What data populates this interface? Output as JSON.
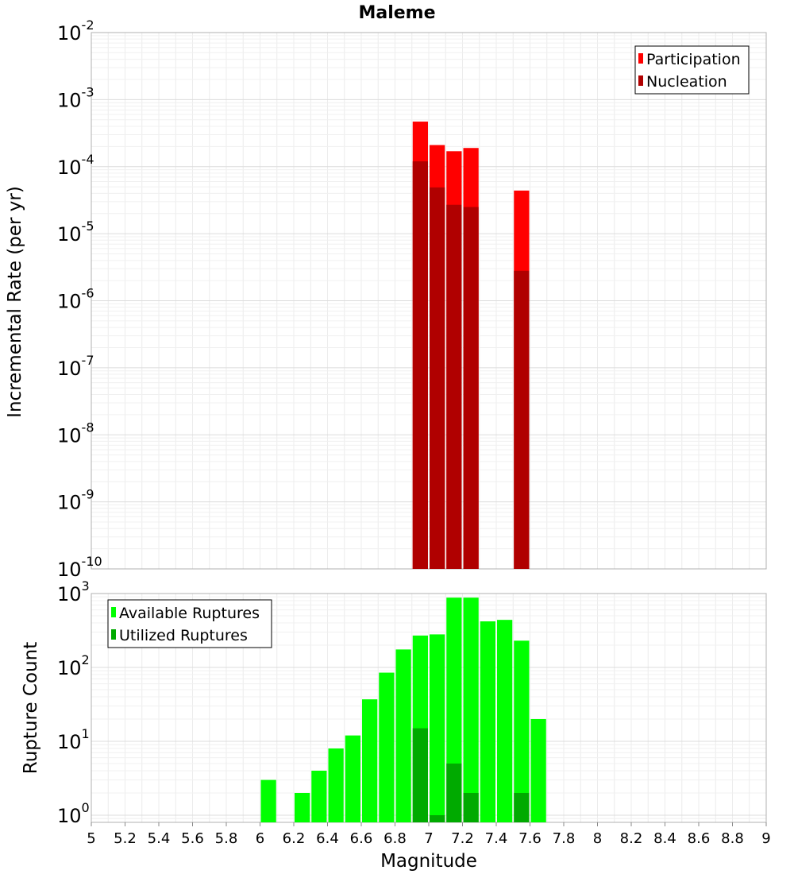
{
  "title": "Maleme",
  "chart_data": [
    {
      "type": "bar",
      "panel": "top",
      "y_scale": "log",
      "ylabel": "Incremental Rate (per yr)",
      "ylim": [
        1e-10,
        0.01
      ],
      "y_ticks": [
        {
          "base": "10",
          "exp": "-2"
        },
        {
          "base": "10",
          "exp": "-3"
        },
        {
          "base": "10",
          "exp": "-4"
        },
        {
          "base": "10",
          "exp": "-5"
        },
        {
          "base": "10",
          "exp": "-6"
        },
        {
          "base": "10",
          "exp": "-7"
        },
        {
          "base": "10",
          "exp": "-8"
        },
        {
          "base": "10",
          "exp": "-9"
        },
        {
          "base": "10",
          "exp": "-10"
        }
      ],
      "bar_width": 0.1,
      "legend": {
        "position": "top-right"
      },
      "series": [
        {
          "name": "Participation",
          "color": "#ff0000",
          "x": [
            6.95,
            7.05,
            7.15,
            7.25,
            7.55
          ],
          "values": [
            0.00047,
            0.00021,
            0.00017,
            0.00019,
            4.4e-05
          ]
        },
        {
          "name": "Nucleation",
          "color": "#b00000",
          "x": [
            6.95,
            7.05,
            7.15,
            7.25,
            7.55
          ],
          "values": [
            0.00012,
            4.9e-05,
            2.7e-05,
            2.5e-05,
            2.8e-06
          ]
        }
      ]
    },
    {
      "type": "bar",
      "panel": "bottom",
      "y_scale": "log",
      "ylabel": "Rupture Count",
      "xlabel": "Magnitude",
      "ylim": [
        0.8,
        1000
      ],
      "y_ticks": [
        {
          "base": "10",
          "exp": "3"
        },
        {
          "base": "10",
          "exp": "2"
        },
        {
          "base": "10",
          "exp": "1"
        },
        {
          "base": "10",
          "exp": "0"
        }
      ],
      "x_ticks": [
        "5",
        "5.2",
        "5.4",
        "5.6",
        "5.8",
        "6",
        "6.2",
        "6.4",
        "6.6",
        "6.8",
        "7",
        "7.2",
        "7.4",
        "7.6",
        "7.8",
        "8",
        "8.2",
        "8.4",
        "8.6",
        "8.8",
        "9"
      ],
      "xlim": [
        5,
        9
      ],
      "bar_width": 0.1,
      "legend": {
        "position": "top-left"
      },
      "series": [
        {
          "name": "Available Ruptures",
          "color": "#00ff00",
          "x": [
            6.05,
            6.25,
            6.35,
            6.45,
            6.55,
            6.65,
            6.75,
            6.85,
            6.95,
            7.05,
            7.15,
            7.25,
            7.35,
            7.45,
            7.55,
            7.65
          ],
          "values": [
            3,
            2,
            4,
            8,
            12,
            37,
            85,
            175,
            270,
            280,
            880,
            880,
            420,
            440,
            230,
            20
          ]
        },
        {
          "name": "Utilized Ruptures",
          "color": "#00aa00",
          "x": [
            6.95,
            7.05,
            7.15,
            7.25,
            7.55
          ],
          "values": [
            15,
            1,
            5,
            2,
            2
          ]
        }
      ]
    }
  ]
}
